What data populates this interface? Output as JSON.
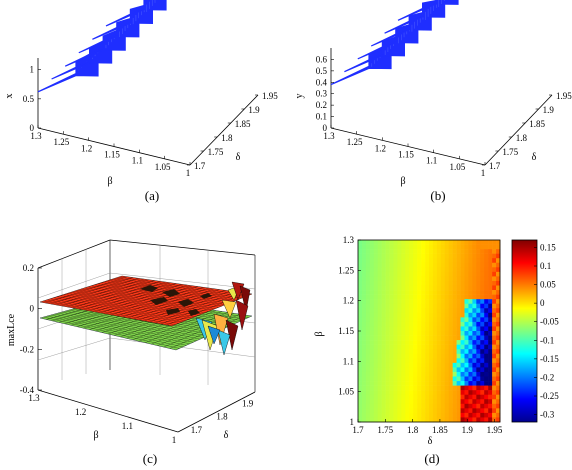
{
  "chart_data": [
    {
      "type": "scatter",
      "panel": "a",
      "caption": "(a)",
      "axes": {
        "x": "β",
        "y": "δ",
        "z": "x"
      },
      "x_ticks": [
        "1.3",
        "1.25",
        "1.2",
        "1.15",
        "1.1",
        "1.05",
        "1"
      ],
      "y_ticks": [
        "1.7",
        "1.75",
        "1.8",
        "1.85",
        "1.9",
        "1.95"
      ],
      "z_ticks": [
        "0",
        "0.5",
        "1"
      ],
      "xlim": [
        1,
        1.3
      ],
      "ylim": [
        1.7,
        1.95
      ],
      "zlim": [
        0,
        1.2
      ],
      "grid": false,
      "color": "#1f2eff",
      "series": [
        {
          "delta": 1.7,
          "base": 0.62,
          "top": 1.35
        },
        {
          "delta": 1.75,
          "base": 0.6,
          "top": 1.3
        },
        {
          "delta": 1.8,
          "base": 0.58,
          "top": 1.25
        },
        {
          "delta": 1.85,
          "base": 0.57,
          "top": 1.2
        },
        {
          "delta": 1.9,
          "base": 0.56,
          "top": 1.18
        },
        {
          "delta": 1.95,
          "base": 0.55,
          "top": 1.15
        }
      ]
    },
    {
      "type": "scatter",
      "panel": "b",
      "caption": "(b)",
      "axes": {
        "x": "β",
        "y": "δ",
        "z": "y"
      },
      "x_ticks": [
        "1.3",
        "1.25",
        "1.2",
        "1.15",
        "1.1",
        "1.05",
        "1"
      ],
      "y_ticks": [
        "1.7",
        "1.75",
        "1.8",
        "1.85",
        "1.9",
        "1.95"
      ],
      "z_ticks": [
        "0",
        "0.1",
        "0.2",
        "0.3",
        "0.4",
        "0.5",
        "0.6"
      ],
      "xlim": [
        1,
        1.3
      ],
      "ylim": [
        1.7,
        1.95
      ],
      "zlim": [
        0,
        0.7
      ],
      "grid": false,
      "color": "#1f2eff",
      "series": [
        {
          "delta": 1.7,
          "base": 0.38,
          "top": 0.72
        },
        {
          "delta": 1.75,
          "base": 0.37,
          "top": 0.7
        },
        {
          "delta": 1.8,
          "base": 0.36,
          "top": 0.68
        },
        {
          "delta": 1.85,
          "base": 0.35,
          "top": 0.66
        },
        {
          "delta": 1.9,
          "base": 0.34,
          "top": 0.64
        },
        {
          "delta": 1.95,
          "base": 0.33,
          "top": 0.63
        }
      ]
    },
    {
      "type": "area",
      "panel": "c",
      "caption": "(c)",
      "axes": {
        "x": "β",
        "y": "δ",
        "z": "maxLce"
      },
      "x_ticks": [
        "1.3",
        "1.2",
        "1.1",
        "1"
      ],
      "y_ticks": [
        "1.7",
        "1.8",
        "1.9"
      ],
      "z_ticks": [
        "-0.4",
        "-0.2",
        "0",
        "0.2"
      ],
      "xlim": [
        1,
        1.3
      ],
      "ylim": [
        1.7,
        1.95
      ],
      "zlim": [
        -0.4,
        0.2
      ],
      "grid": true,
      "surfaces": [
        {
          "level": 0,
          "color": "#ff3a1a"
        },
        {
          "level": -0.1,
          "color": "#7ed24a"
        }
      ]
    },
    {
      "type": "heatmap",
      "panel": "d",
      "caption": "(d)",
      "xlabel": "δ",
      "ylabel": "β",
      "x_ticks": [
        "1.7",
        "1.75",
        "1.8",
        "1.85",
        "1.9",
        "1.95"
      ],
      "y_ticks": [
        "1",
        "1.05",
        "1.1",
        "1.15",
        "1.2",
        "1.25",
        "1.3"
      ],
      "xlim": [
        1.7,
        1.96
      ],
      "ylim": [
        1,
        1.3
      ],
      "colorbar_ticks": [
        "0.15",
        "0.1",
        "0.05",
        "0",
        "-0.05",
        "-0.1",
        "-0.15",
        "-0.2",
        "-0.25",
        "-0.3"
      ],
      "clim": [
        -0.32,
        0.17
      ],
      "grid": false
    }
  ]
}
